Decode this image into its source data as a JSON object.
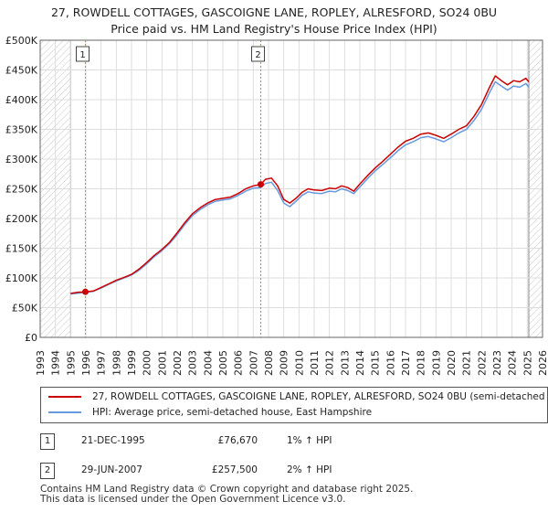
{
  "chart_data": {
    "type": "line",
    "title": "27, ROWDELL COTTAGES, GASCOIGNE LANE, ROPLEY, ALRESFORD, SO24 0BU",
    "subtitle": "Price paid vs. HM Land Registry's House Price Index (HPI)",
    "xlim": [
      1993,
      2026
    ],
    "ylim": [
      0,
      500000
    ],
    "y_ticks": [
      {
        "value": 0,
        "label": "£0"
      },
      {
        "value": 50000,
        "label": "£50K"
      },
      {
        "value": 100000,
        "label": "£100K"
      },
      {
        "value": 150000,
        "label": "£150K"
      },
      {
        "value": 200000,
        "label": "£200K"
      },
      {
        "value": 250000,
        "label": "£250K"
      },
      {
        "value": 300000,
        "label": "£300K"
      },
      {
        "value": 350000,
        "label": "£350K"
      },
      {
        "value": 400000,
        "label": "£400K"
      },
      {
        "value": 450000,
        "label": "£450K"
      },
      {
        "value": 500000,
        "label": "£500K"
      }
    ],
    "x_ticks": [
      "1993",
      "1994",
      "1995",
      "1996",
      "1997",
      "1998",
      "1999",
      "2000",
      "2001",
      "2002",
      "2003",
      "2004",
      "2005",
      "2006",
      "2007",
      "2008",
      "2009",
      "2010",
      "2011",
      "2012",
      "2013",
      "2014",
      "2015",
      "2016",
      "2017",
      "2018",
      "2019",
      "2020",
      "2021",
      "2022",
      "2023",
      "2024",
      "2025",
      "2026"
    ],
    "hatched_ranges": [
      [
        1993,
        1995.0
      ],
      [
        2025.1,
        2026
      ]
    ],
    "series": [
      {
        "name": "27, ROWDELL COTTAGES, GASCOIGNE LANE, ROPLEY, ALRESFORD, SO24 0BU (semi-detached",
        "color": "#cc0000",
        "points": [
          [
            1995.0,
            74000
          ],
          [
            1995.5,
            76000
          ],
          [
            1995.97,
            76670
          ],
          [
            1996.5,
            78000
          ],
          [
            1997,
            84000
          ],
          [
            1997.5,
            90000
          ],
          [
            1998,
            96000
          ],
          [
            1998.5,
            101000
          ],
          [
            1999,
            106000
          ],
          [
            1999.5,
            115000
          ],
          [
            2000,
            126000
          ],
          [
            2000.5,
            138000
          ],
          [
            2001,
            148000
          ],
          [
            2001.5,
            160000
          ],
          [
            2002,
            176000
          ],
          [
            2002.5,
            193000
          ],
          [
            2003,
            208000
          ],
          [
            2003.5,
            218000
          ],
          [
            2004,
            226000
          ],
          [
            2004.5,
            232000
          ],
          [
            2005,
            234000
          ],
          [
            2005.5,
            236000
          ],
          [
            2006,
            242000
          ],
          [
            2006.5,
            250000
          ],
          [
            2007,
            255000
          ],
          [
            2007.49,
            257500
          ],
          [
            2007.8,
            266000
          ],
          [
            2008.2,
            268000
          ],
          [
            2008.6,
            255000
          ],
          [
            2009,
            232000
          ],
          [
            2009.4,
            226000
          ],
          [
            2009.8,
            234000
          ],
          [
            2010.2,
            244000
          ],
          [
            2010.6,
            250000
          ],
          [
            2011,
            248000
          ],
          [
            2011.5,
            247000
          ],
          [
            2012,
            251000
          ],
          [
            2012.4,
            250000
          ],
          [
            2012.8,
            255000
          ],
          [
            2013.2,
            252000
          ],
          [
            2013.6,
            246000
          ],
          [
            2014,
            258000
          ],
          [
            2014.5,
            272000
          ],
          [
            2015,
            285000
          ],
          [
            2015.5,
            296000
          ],
          [
            2016,
            308000
          ],
          [
            2016.5,
            320000
          ],
          [
            2017,
            330000
          ],
          [
            2017.5,
            335000
          ],
          [
            2018,
            342000
          ],
          [
            2018.5,
            344000
          ],
          [
            2019,
            340000
          ],
          [
            2019.5,
            335000
          ],
          [
            2020,
            342000
          ],
          [
            2020.5,
            350000
          ],
          [
            2021,
            356000
          ],
          [
            2021.5,
            372000
          ],
          [
            2022,
            392000
          ],
          [
            2022.5,
            420000
          ],
          [
            2022.9,
            440000
          ],
          [
            2023.3,
            432000
          ],
          [
            2023.7,
            425000
          ],
          [
            2024.1,
            432000
          ],
          [
            2024.5,
            430000
          ],
          [
            2024.9,
            436000
          ],
          [
            2025.1,
            430000
          ]
        ]
      },
      {
        "name": "HPI: Average price, semi-detached house, East Hampshire",
        "color": "#6699dd",
        "points": [
          [
            1995.0,
            73000
          ],
          [
            1995.5,
            74500
          ],
          [
            1995.97,
            75900
          ],
          [
            1996.5,
            77500
          ],
          [
            1997,
            83000
          ],
          [
            1997.5,
            89000
          ],
          [
            1998,
            95000
          ],
          [
            1998.5,
            100000
          ],
          [
            1999,
            105000
          ],
          [
            1999.5,
            113000
          ],
          [
            2000,
            124000
          ],
          [
            2000.5,
            136000
          ],
          [
            2001,
            146000
          ],
          [
            2001.5,
            158000
          ],
          [
            2002,
            173000
          ],
          [
            2002.5,
            190000
          ],
          [
            2003,
            205000
          ],
          [
            2003.5,
            215000
          ],
          [
            2004,
            223000
          ],
          [
            2004.5,
            229000
          ],
          [
            2005,
            231000
          ],
          [
            2005.5,
            233000
          ],
          [
            2006,
            239000
          ],
          [
            2006.5,
            246000
          ],
          [
            2007,
            251000
          ],
          [
            2007.49,
            252000
          ],
          [
            2007.8,
            259000
          ],
          [
            2008.2,
            261000
          ],
          [
            2008.6,
            247000
          ],
          [
            2009,
            226000
          ],
          [
            2009.4,
            220000
          ],
          [
            2009.8,
            229000
          ],
          [
            2010.2,
            239000
          ],
          [
            2010.6,
            245000
          ],
          [
            2011,
            243000
          ],
          [
            2011.5,
            242000
          ],
          [
            2012,
            246000
          ],
          [
            2012.4,
            245000
          ],
          [
            2012.8,
            250000
          ],
          [
            2013.2,
            247000
          ],
          [
            2013.6,
            242000
          ],
          [
            2014,
            253000
          ],
          [
            2014.5,
            267000
          ],
          [
            2015,
            280000
          ],
          [
            2015.5,
            291000
          ],
          [
            2016,
            302000
          ],
          [
            2016.5,
            314000
          ],
          [
            2017,
            324000
          ],
          [
            2017.5,
            329000
          ],
          [
            2018,
            336000
          ],
          [
            2018.5,
            338000
          ],
          [
            2019,
            334000
          ],
          [
            2019.5,
            329000
          ],
          [
            2020,
            336000
          ],
          [
            2020.5,
            344000
          ],
          [
            2021,
            350000
          ],
          [
            2021.5,
            365000
          ],
          [
            2022,
            384000
          ],
          [
            2022.5,
            411000
          ],
          [
            2022.9,
            430000
          ],
          [
            2023.3,
            423000
          ],
          [
            2023.7,
            416000
          ],
          [
            2024.1,
            423000
          ],
          [
            2024.5,
            421000
          ],
          [
            2024.9,
            427000
          ],
          [
            2025.1,
            421000
          ]
        ]
      }
    ],
    "sales": [
      {
        "id": "1",
        "x": 1995.97,
        "price": 76670,
        "date": "21-DEC-1995",
        "price_label": "£76,670",
        "hpi": "1% ↑ HPI"
      },
      {
        "id": "2",
        "x": 2007.49,
        "price": 257500,
        "date": "29-JUN-2007",
        "price_label": "£257,500",
        "hpi": "2% ↑ HPI"
      }
    ],
    "marker_color": "#cc0000",
    "vline_color": "#ff6666"
  },
  "legend": {
    "red_label": "27, ROWDELL COTTAGES, GASCOIGNE LANE, ROPLEY, ALRESFORD, SO24 0BU (semi-detached",
    "blue_label": "HPI: Average price, semi-detached house, East Hampshire"
  },
  "footer": {
    "line1": "Contains HM Land Registry data © Crown copyright and database right 2025.",
    "line2": "This data is licensed under the Open Government Licence v3.0."
  }
}
